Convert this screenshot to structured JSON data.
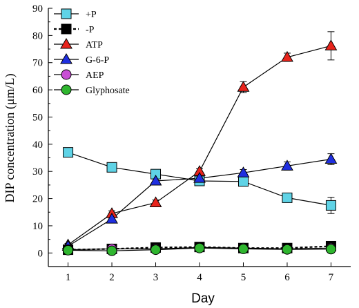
{
  "chart_data": {
    "type": "line",
    "xlabel": "Day",
    "ylabel": "DIP concentration (μm/L)",
    "xlim": [
      0.55,
      7.45
    ],
    "ylim": [
      -5,
      90
    ],
    "x_ticks": [
      1,
      2,
      3,
      4,
      5,
      6,
      7
    ],
    "y_ticks": [
      0,
      10,
      20,
      30,
      40,
      50,
      60,
      70,
      80,
      90
    ],
    "grid": false,
    "legend_position": "top-left",
    "x": [
      1,
      2,
      3,
      4,
      5,
      6,
      7
    ],
    "series": [
      {
        "name": "+P",
        "marker": "square",
        "color": "#5fd3e6",
        "line": "solid",
        "values": [
          37,
          31.5,
          29,
          26.5,
          26.3,
          20.3,
          17.5
        ],
        "errors": [
          1.5,
          1.0,
          1.5,
          1.2,
          1.5,
          1.2,
          3.0
        ]
      },
      {
        "name": "-P",
        "marker": "square",
        "color": "#000000",
        "line": "dashed",
        "values": [
          1.2,
          1.5,
          2.0,
          2.2,
          1.8,
          1.8,
          2.5
        ],
        "errors": [
          0.5,
          0.5,
          0.5,
          0.5,
          0.5,
          0.5,
          0.8
        ]
      },
      {
        "name": "ATP",
        "marker": "triangle",
        "color": "#e8241c",
        "line": "solid",
        "values": [
          3,
          14.5,
          18.5,
          30,
          61,
          72,
          76.2
        ],
        "errors": [
          0.5,
          1.0,
          1.0,
          1.0,
          2.0,
          1.5,
          5.2
        ]
      },
      {
        "name": "G-6-P",
        "marker": "triangle",
        "color": "#1f2fe0",
        "line": "solid",
        "values": [
          2.5,
          12.5,
          26.5,
          27.5,
          29.5,
          32,
          34.5
        ],
        "errors": [
          0.5,
          1.0,
          1.0,
          1.0,
          1.2,
          1.5,
          2.0
        ]
      },
      {
        "name": "AEP",
        "marker": "circle",
        "color": "#c94fd4",
        "line": "solid",
        "values": [
          1.2,
          1.5,
          1.5,
          2.0,
          1.8,
          1.5,
          1.8
        ],
        "errors": [
          0.4,
          0.4,
          0.4,
          0.4,
          0.4,
          0.4,
          0.5
        ]
      },
      {
        "name": "Glyphosate",
        "marker": "circle",
        "color": "#2fb62f",
        "line": "solid",
        "values": [
          1.0,
          0.8,
          1.2,
          1.8,
          1.5,
          1.3,
          1.4
        ],
        "errors": [
          0.4,
          0.4,
          0.4,
          0.4,
          0.4,
          0.4,
          0.4
        ]
      }
    ]
  }
}
